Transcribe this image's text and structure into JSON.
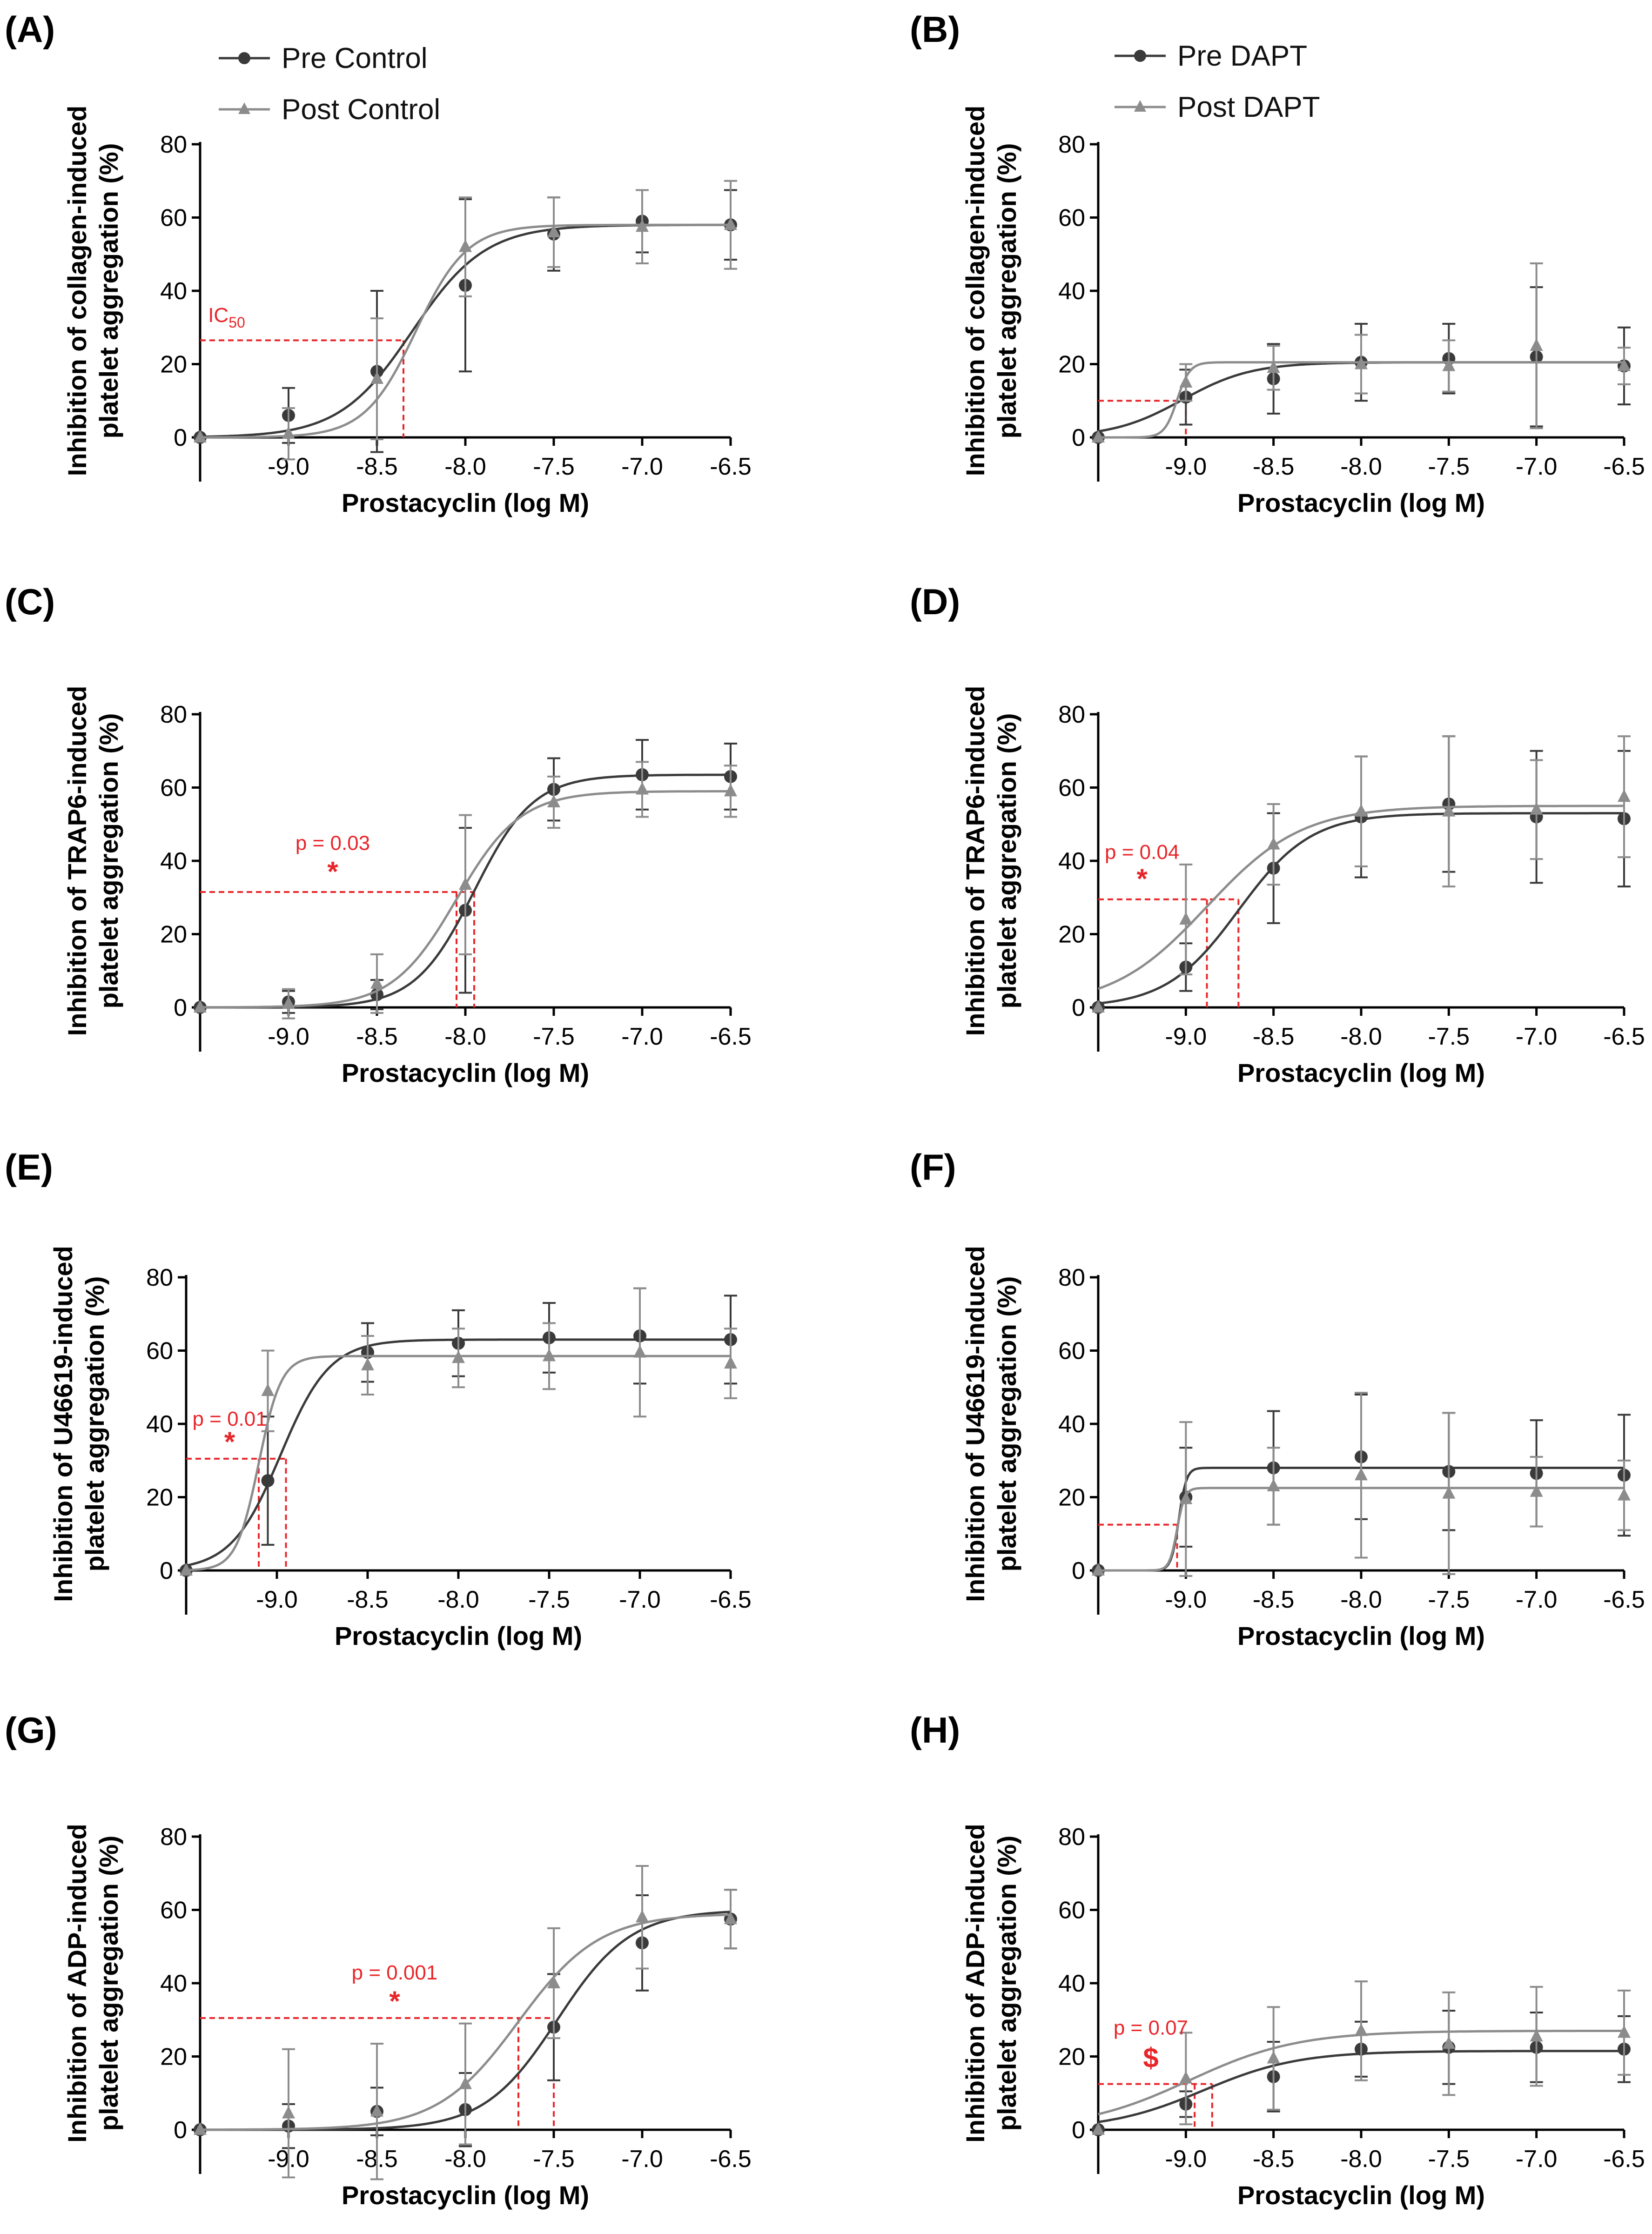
{
  "figure": {
    "legend_control": {
      "pre": "Pre Control",
      "post": "Post Control"
    },
    "legend_dapt": {
      "pre": "Pre DAPT",
      "post": "Post DAPT"
    },
    "colors": {
      "pre": "#3a3a3a",
      "post": "#8c8c8c",
      "annotation": "#e8262a",
      "axis": "#000000"
    }
  },
  "chart_data": [
    {
      "id": "A",
      "label": "(A)",
      "type": "line",
      "title": "",
      "xlabel": "Prostacyclin (log M)",
      "ylabel": [
        "Inhibition of collagen-induced",
        "platelet aggregation (%)"
      ],
      "xlim": [
        -9.5,
        -6.5
      ],
      "ylim": [
        0,
        80
      ],
      "xticks": [
        -9.0,
        -8.5,
        -8.0,
        -7.5,
        -7.0,
        -6.5
      ],
      "xtick_labels": [
        "-9.0",
        "-8.5",
        "-8.0",
        "-7.5",
        "-7.0",
        "-6.5"
      ],
      "yticks": [
        0,
        20,
        40,
        60,
        80
      ],
      "series": [
        {
          "name": "Pre Control",
          "x": [
            -9.5,
            -9.0,
            -8.5,
            -8.0,
            -7.5,
            -7.0,
            -6.5
          ],
          "y": [
            0,
            6,
            18,
            41.5,
            55.5,
            59,
            58
          ],
          "err": [
            0,
            7.5,
            22,
            23.5,
            10,
            8.5,
            9.5
          ],
          "fit": {
            "bottom": 0,
            "top": 58,
            "logIC50": -8.3,
            "hill": 2.1
          }
        },
        {
          "name": "Post Control",
          "x": [
            -9.5,
            -9.0,
            -8.5,
            -8.0,
            -7.5,
            -7.0,
            -6.5
          ],
          "y": [
            0,
            1,
            16,
            52,
            56,
            57.5,
            58
          ],
          "err": [
            0,
            7,
            16.5,
            13.5,
            9.5,
            10,
            12
          ],
          "fit": {
            "bottom": 0,
            "top": 58,
            "logIC50": -8.28,
            "hill": 3.0
          }
        }
      ],
      "annotations": [
        {
          "text": "IC",
          "sub": "50",
          "x": -9.35,
          "y": 31.5
        },
        {
          "type": "ic50_lines",
          "y": 26.5,
          "x": [
            -8.35
          ]
        }
      ]
    },
    {
      "id": "B",
      "label": "(B)",
      "type": "line",
      "title": "",
      "xlabel": "Prostacyclin (log M)",
      "ylabel": [
        "Inhibition of collagen-induced",
        "platelet aggregation (%)"
      ],
      "xlim": [
        -9.5,
        -6.5
      ],
      "ylim": [
        0,
        80
      ],
      "xticks": [
        -9.0,
        -8.5,
        -8.0,
        -7.5,
        -7.0,
        -6.5
      ],
      "xtick_labels": [
        "-9.0",
        "-8.5",
        "-8.0",
        "-7.5",
        "-7.0",
        "-6.5"
      ],
      "yticks": [
        0,
        20,
        40,
        60,
        80
      ],
      "series": [
        {
          "name": "Pre DAPT",
          "x": [
            -9.5,
            -9.0,
            -8.5,
            -8.0,
            -7.5,
            -7.0,
            -6.5
          ],
          "y": [
            0,
            11,
            16,
            20.5,
            21.5,
            22,
            19.5
          ],
          "err": [
            0,
            7.5,
            9.5,
            10.5,
            9.5,
            19,
            10.5
          ],
          "fit": {
            "bottom": 0,
            "top": 20.5,
            "logIC50": -9.02,
            "hill": 2.2
          }
        },
        {
          "name": "Post DAPT",
          "x": [
            -9.5,
            -9.0,
            -8.5,
            -8.0,
            -7.5,
            -7.0,
            -6.5
          ],
          "y": [
            0,
            15,
            19,
            20,
            19.5,
            25,
            19.5
          ],
          "err": [
            0,
            5,
            6,
            8,
            7,
            22.5,
            5
          ],
          "fit": {
            "bottom": 0,
            "top": 20.5,
            "logIC50": -9.05,
            "hill": 12
          }
        }
      ],
      "annotations": [
        {
          "type": "ic50_lines",
          "y": 10,
          "x": [
            -9.0
          ]
        }
      ]
    },
    {
      "id": "C",
      "label": "(C)",
      "type": "line",
      "title": "",
      "xlabel": "Prostacyclin (log M)",
      "ylabel": [
        "Inhibition of TRAP6-induced",
        "platelet aggregation (%)"
      ],
      "xlim": [
        -9.5,
        -6.5
      ],
      "ylim": [
        0,
        80
      ],
      "xticks": [
        -9.0,
        -8.5,
        -8.0,
        -7.5,
        -7.0,
        -6.5
      ],
      "xtick_labels": [
        "-9.0",
        "-8.5",
        "-8.0",
        "-7.5",
        "-7.0",
        "-6.5"
      ],
      "yticks": [
        0,
        20,
        40,
        60,
        80
      ],
      "series": [
        {
          "name": "Pre Control",
          "x": [
            -9.5,
            -9.0,
            -8.5,
            -8.0,
            -7.5,
            -7.0,
            -6.5
          ],
          "y": [
            0,
            1.5,
            3.5,
            26.5,
            59.5,
            63.5,
            63
          ],
          "err": [
            0,
            3,
            4,
            22.5,
            8.5,
            9.5,
            9
          ],
          "fit": {
            "bottom": 0,
            "top": 63.5,
            "logIC50": -7.95,
            "hill": 2.6
          }
        },
        {
          "name": "Post Control",
          "x": [
            -9.5,
            -9.0,
            -8.5,
            -8.0,
            -7.5,
            -7.0,
            -6.5
          ],
          "y": [
            0,
            1,
            6.5,
            33.5,
            56,
            59.5,
            59
          ],
          "err": [
            0,
            4,
            8,
            19,
            7,
            7.5,
            7
          ],
          "fit": {
            "bottom": 0,
            "top": 59,
            "logIC50": -8.05,
            "hill": 2.4
          }
        }
      ],
      "annotations": [
        {
          "text": "p = 0.03",
          "x": -8.75,
          "y": 43
        },
        {
          "text": "*",
          "x": -8.75,
          "y": 34.5
        },
        {
          "type": "ic50_lines",
          "y": 31.5,
          "x": [
            -8.05,
            -7.95
          ]
        }
      ]
    },
    {
      "id": "D",
      "label": "(D)",
      "type": "line",
      "title": "",
      "xlabel": "Prostacyclin (log M)",
      "ylabel": [
        "Inhibition of TRAP6-induced",
        "platelet aggregation (%)"
      ],
      "xlim": [
        -9.5,
        -6.5
      ],
      "ylim": [
        0,
        80
      ],
      "xticks": [
        -9.0,
        -8.5,
        -8.0,
        -7.5,
        -7.0,
        -6.5
      ],
      "xtick_labels": [
        "-9.0",
        "-8.5",
        "-8.0",
        "-7.5",
        "-7.0",
        "-6.5"
      ],
      "yticks": [
        0,
        20,
        40,
        60,
        80
      ],
      "series": [
        {
          "name": "Pre DAPT",
          "x": [
            -9.5,
            -9.0,
            -8.5,
            -8.0,
            -7.5,
            -7.0,
            -6.5
          ],
          "y": [
            0,
            11,
            38,
            52,
            55.5,
            52,
            51.5
          ],
          "err": [
            0,
            6.5,
            15,
            16.5,
            18.5,
            18,
            18.5
          ],
          "fit": {
            "bottom": 0,
            "top": 53,
            "logIC50": -8.7,
            "hill": 2.1
          }
        },
        {
          "name": "Post DAPT",
          "x": [
            -9.5,
            -9.0,
            -8.5,
            -8.0,
            -7.5,
            -7.0,
            -6.5
          ],
          "y": [
            0,
            24,
            44.5,
            53.5,
            53.5,
            54,
            57.5
          ],
          "err": [
            0,
            15,
            11,
            15,
            20.5,
            13.5,
            16.5
          ],
          "fit": {
            "bottom": 0,
            "top": 55,
            "logIC50": -8.88,
            "hill": 1.6
          }
        }
      ],
      "annotations": [
        {
          "text": "p = 0.04",
          "x": -9.25,
          "y": 40.5
        },
        {
          "text": "*",
          "x": -9.25,
          "y": 32.5
        },
        {
          "type": "ic50_lines",
          "y": 29.5,
          "x": [
            -8.88,
            -8.7
          ]
        }
      ]
    },
    {
      "id": "E",
      "label": "(E)",
      "type": "line",
      "title": "",
      "xlabel": "Prostacyclin (log M)",
      "ylabel": [
        "Inhibition of U46619-induced",
        "platelet aggregation (%)"
      ],
      "xlim": [
        -9.5,
        -6.5
      ],
      "ylim": [
        0,
        80
      ],
      "xticks": [
        -9.0,
        -8.5,
        -8.0,
        -7.5,
        -7.0,
        -6.5
      ],
      "xtick_labels": [
        "-9.0",
        "-8.5",
        "-8.0",
        "-7.5",
        "-7.0",
        "-6.5"
      ],
      "yticks": [
        0,
        20,
        40,
        60,
        80
      ],
      "series": [
        {
          "name": "Pre Control",
          "x": [
            -9.5,
            -9.05,
            -8.5,
            -8.0,
            -7.5,
            -7.0,
            -6.5
          ],
          "y": [
            0,
            24.5,
            59.5,
            62,
            63.5,
            64,
            63
          ],
          "err": [
            0,
            17.5,
            8,
            9,
            9.5,
            13,
            12
          ],
          "fit": {
            "bottom": 0,
            "top": 63,
            "logIC50": -8.98,
            "hill": 3.2
          }
        },
        {
          "name": "Post Control",
          "x": [
            -9.5,
            -9.05,
            -8.5,
            -8.0,
            -7.5,
            -7.0,
            -6.5
          ],
          "y": [
            0,
            49,
            56,
            58,
            58.5,
            59.5,
            56.5
          ],
          "err": [
            0,
            11,
            8,
            8,
            9,
            17.5,
            9.5
          ],
          "fit": {
            "bottom": 0,
            "top": 58.5,
            "logIC50": -9.1,
            "hill": 7
          }
        }
      ],
      "annotations": [
        {
          "text": "p = 0.01",
          "x": -9.26,
          "y": 39.5
        },
        {
          "text": "*",
          "x": -9.26,
          "y": 32.5
        },
        {
          "type": "ic50_lines",
          "y": 30.5,
          "x": [
            -9.1,
            -8.95
          ]
        }
      ]
    },
    {
      "id": "F",
      "label": "(F)",
      "type": "line",
      "title": "",
      "xlabel": "Prostacyclin (log M)",
      "ylabel": [
        "Inhibition of U46619-induced",
        "platelet aggregation (%)"
      ],
      "xlim": [
        -9.5,
        -6.5
      ],
      "ylim": [
        0,
        80
      ],
      "xticks": [
        -9.0,
        -8.5,
        -8.0,
        -7.5,
        -7.0,
        -6.5
      ],
      "xtick_labels": [
        "-9.0",
        "-8.5",
        "-8.0",
        "-7.5",
        "-7.0",
        "-6.5"
      ],
      "yticks": [
        0,
        20,
        40,
        60,
        80
      ],
      "series": [
        {
          "name": "Pre DAPT",
          "x": [
            -9.5,
            -9.0,
            -8.5,
            -8.0,
            -7.5,
            -7.0,
            -6.5
          ],
          "y": [
            0,
            20,
            28,
            31,
            27,
            26.5,
            26
          ],
          "err": [
            0,
            13.5,
            15.5,
            17,
            16,
            14.5,
            16.5
          ],
          "fit": {
            "bottom": 0,
            "top": 28,
            "logIC50": -9.04,
            "hill": 20
          }
        },
        {
          "name": "Post DAPT",
          "x": [
            -9.5,
            -9.0,
            -8.5,
            -8.0,
            -7.5,
            -7.0,
            -6.5
          ],
          "y": [
            0,
            19.5,
            23,
            26,
            21,
            21.5,
            20.5
          ],
          "err": [
            0,
            21,
            10.5,
            22.5,
            22,
            9.5,
            9.5
          ],
          "fit": {
            "bottom": 0,
            "top": 22.5,
            "logIC50": -9.05,
            "hill": 20
          }
        }
      ],
      "annotations": [
        {
          "type": "ic50_lines",
          "y": 12.5,
          "x": [
            -9.05
          ]
        }
      ]
    },
    {
      "id": "G",
      "label": "(G)",
      "type": "line",
      "title": "",
      "xlabel": "Prostacyclin (log M)",
      "ylabel": [
        "Inhibition of ADP-induced",
        "platelet aggregation (%)"
      ],
      "xlim": [
        -9.5,
        -6.5
      ],
      "ylim": [
        0,
        80
      ],
      "xticks": [
        -9.0,
        -8.5,
        -8.0,
        -7.5,
        -7.0,
        -6.5
      ],
      "xtick_labels": [
        "-9.0",
        "-8.5",
        "-8.0",
        "-7.5",
        "-7.0",
        "-6.5"
      ],
      "yticks": [
        0,
        20,
        40,
        60,
        80
      ],
      "series": [
        {
          "name": "Pre Control",
          "x": [
            -9.5,
            -9.0,
            -8.5,
            -8.0,
            -7.5,
            -7.0,
            -6.5
          ],
          "y": [
            0,
            1,
            5,
            5.5,
            28,
            51,
            57.5
          ],
          "err": [
            0,
            6,
            6.5,
            10,
            14.5,
            13,
            8
          ],
          "fit": {
            "bottom": 0,
            "top": 60,
            "logIC50": -7.48,
            "hill": 2.1
          }
        },
        {
          "name": "Post Control",
          "x": [
            -9.5,
            -9.0,
            -8.5,
            -8.0,
            -7.5,
            -7.0,
            -6.5
          ],
          "y": [
            0,
            4.5,
            5,
            12.5,
            40,
            58,
            57.5
          ],
          "err": [
            0,
            17.5,
            18.5,
            16.5,
            15,
            14,
            8
          ],
          "fit": {
            "bottom": 0,
            "top": 59,
            "logIC50": -7.7,
            "hill": 1.9
          }
        }
      ],
      "annotations": [
        {
          "text": "p = 0.001",
          "x": -8.4,
          "y": 41
        },
        {
          "text": "*",
          "x": -8.4,
          "y": 32.5
        },
        {
          "type": "ic50_lines",
          "y": 30.5,
          "x": [
            -7.7,
            -7.5
          ]
        }
      ]
    },
    {
      "id": "H",
      "label": "(H)",
      "type": "line",
      "title": "",
      "xlabel": "Prostacyclin (log M)",
      "ylabel": [
        "Inhibition of ADP-induced",
        "platelet aggregation (%)"
      ],
      "xlim": [
        -9.5,
        -6.5
      ],
      "ylim": [
        0,
        80
      ],
      "xticks": [
        -9.0,
        -8.5,
        -8.0,
        -7.5,
        -7.0,
        -6.5
      ],
      "xtick_labels": [
        "-9.0",
        "-8.5",
        "-8.0",
        "-7.5",
        "-7.0",
        "-6.5"
      ],
      "yticks": [
        0,
        20,
        40,
        60,
        80
      ],
      "series": [
        {
          "name": "Pre DAPT",
          "x": [
            -9.5,
            -9.0,
            -8.5,
            -8.0,
            -7.5,
            -7.0,
            -6.5
          ],
          "y": [
            0,
            7,
            14.5,
            22,
            22.5,
            22.5,
            22
          ],
          "err": [
            0,
            3.5,
            9.5,
            7.5,
            10,
            9.5,
            9
          ],
          "fit": {
            "bottom": 0,
            "top": 21.5,
            "logIC50": -8.9,
            "hill": 1.6
          }
        },
        {
          "name": "Post DAPT",
          "x": [
            -9.5,
            -9.0,
            -8.5,
            -8.0,
            -7.5,
            -7.0,
            -6.5
          ],
          "y": [
            0,
            14,
            19.5,
            27,
            23.5,
            25.5,
            26.5
          ],
          "err": [
            0,
            12.5,
            14,
            13.5,
            14,
            13.5,
            11.5
          ],
          "fit": {
            "bottom": 0,
            "top": 27,
            "logIC50": -8.98,
            "hill": 1.4
          }
        }
      ],
      "annotations": [
        {
          "text": "p = 0.07",
          "x": -9.2,
          "y": 26
        },
        {
          "text": "$",
          "x": -9.2,
          "y": 17
        },
        {
          "type": "ic50_lines",
          "y": 12.5,
          "x": [
            -8.95,
            -8.85
          ]
        }
      ]
    }
  ]
}
